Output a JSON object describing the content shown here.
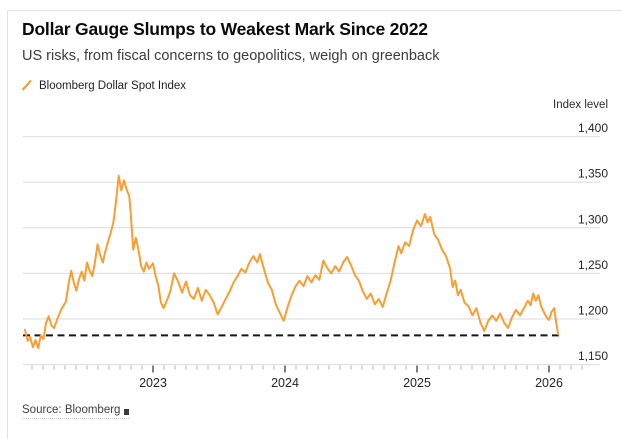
{
  "header": {
    "title": "Dollar Gauge Slumps to Weakest Mark Since 2022",
    "subtitle": "US risks, from fiscal concerns to geopolitics, weigh on greenback"
  },
  "legend": {
    "series_label": "Bloomberg Dollar Spot Index",
    "marker_color": "#e8a33c"
  },
  "footer": {
    "source": "Source: Bloomberg"
  },
  "chart_data": {
    "type": "line",
    "title": "Dollar Gauge Slumps to Weakest Mark Since 2022",
    "subtitle": "US risks, from fiscal concerns to geopolitics, weigh on greenback",
    "y_axis_title": "Index level",
    "xlabel": "",
    "ylabel": "Index level",
    "x_range": [
      2022.015,
      2026.33
    ],
    "ylim": [
      1140,
      1410
    ],
    "yticks": [
      1400,
      1350,
      1300,
      1250,
      1200,
      1150
    ],
    "ytick_labels": [
      "1,400",
      "1,350",
      "1,300",
      "1,250",
      "1,200",
      "1,150"
    ],
    "xticks": [
      2023,
      2024,
      2025,
      2026
    ],
    "xtick_labels": [
      "2023",
      "2024",
      "2025",
      "2026"
    ],
    "grid": "horizontal",
    "legend_position": "top-left",
    "line_color": "#f79e35",
    "grid_color": "#dbdbdb",
    "minor_tick_color": "#b5b5b5",
    "major_tick_color": "#4a4a4a",
    "tick_label_color": "#262626",
    "reference_line": {
      "value": 1182,
      "style": "dashed",
      "color": "#161616"
    },
    "series": [
      {
        "name": "Bloomberg Dollar Spot Index",
        "points": [
          [
            2022.03,
            1188
          ],
          [
            2022.05,
            1176
          ],
          [
            2022.07,
            1180
          ],
          [
            2022.09,
            1169
          ],
          [
            2022.11,
            1177
          ],
          [
            2022.13,
            1168
          ],
          [
            2022.15,
            1182
          ],
          [
            2022.17,
            1178
          ],
          [
            2022.19,
            1196
          ],
          [
            2022.21,
            1203
          ],
          [
            2022.23,
            1193
          ],
          [
            2022.25,
            1190
          ],
          [
            2022.28,
            1202
          ],
          [
            2022.31,
            1212
          ],
          [
            2022.34,
            1219
          ],
          [
            2022.36,
            1238
          ],
          [
            2022.38,
            1253
          ],
          [
            2022.4,
            1240
          ],
          [
            2022.42,
            1231
          ],
          [
            2022.44,
            1244
          ],
          [
            2022.46,
            1252
          ],
          [
            2022.48,
            1242
          ],
          [
            2022.5,
            1262
          ],
          [
            2022.52,
            1253
          ],
          [
            2022.54,
            1247
          ],
          [
            2022.56,
            1262
          ],
          [
            2022.58,
            1282
          ],
          [
            2022.6,
            1270
          ],
          [
            2022.62,
            1262
          ],
          [
            2022.64,
            1275
          ],
          [
            2022.66,
            1285
          ],
          [
            2022.68,
            1295
          ],
          [
            2022.7,
            1306
          ],
          [
            2022.72,
            1329
          ],
          [
            2022.74,
            1357
          ],
          [
            2022.76,
            1341
          ],
          [
            2022.78,
            1352
          ],
          [
            2022.8,
            1342
          ],
          [
            2022.82,
            1335
          ],
          [
            2022.83,
            1318
          ],
          [
            2022.85,
            1276
          ],
          [
            2022.87,
            1289
          ],
          [
            2022.89,
            1276
          ],
          [
            2022.91,
            1258
          ],
          [
            2022.93,
            1252
          ],
          [
            2022.95,
            1262
          ],
          [
            2022.97,
            1255
          ],
          [
            2023.0,
            1261
          ],
          [
            2023.02,
            1247
          ],
          [
            2023.04,
            1237
          ],
          [
            2023.06,
            1218
          ],
          [
            2023.08,
            1212
          ],
          [
            2023.11,
            1222
          ],
          [
            2023.13,
            1230
          ],
          [
            2023.16,
            1250
          ],
          [
            2023.19,
            1241
          ],
          [
            2023.22,
            1229
          ],
          [
            2023.25,
            1241
          ],
          [
            2023.28,
            1226
          ],
          [
            2023.31,
            1222
          ],
          [
            2023.34,
            1234
          ],
          [
            2023.37,
            1220
          ],
          [
            2023.4,
            1232
          ],
          [
            2023.43,
            1226
          ],
          [
            2023.46,
            1218
          ],
          [
            2023.49,
            1205
          ],
          [
            2023.52,
            1213
          ],
          [
            2023.55,
            1222
          ],
          [
            2023.58,
            1230
          ],
          [
            2023.61,
            1240
          ],
          [
            2023.64,
            1247
          ],
          [
            2023.67,
            1255
          ],
          [
            2023.7,
            1251
          ],
          [
            2023.73,
            1262
          ],
          [
            2023.76,
            1269
          ],
          [
            2023.79,
            1262
          ],
          [
            2023.81,
            1271
          ],
          [
            2023.84,
            1255
          ],
          [
            2023.87,
            1240
          ],
          [
            2023.9,
            1232
          ],
          [
            2023.93,
            1216
          ],
          [
            2023.96,
            1207
          ],
          [
            2023.99,
            1198
          ],
          [
            2024.02,
            1213
          ],
          [
            2024.05,
            1226
          ],
          [
            2024.08,
            1236
          ],
          [
            2024.11,
            1242
          ],
          [
            2024.14,
            1236
          ],
          [
            2024.17,
            1247
          ],
          [
            2024.2,
            1240
          ],
          [
            2024.23,
            1248
          ],
          [
            2024.26,
            1243
          ],
          [
            2024.29,
            1264
          ],
          [
            2024.32,
            1256
          ],
          [
            2024.35,
            1250
          ],
          [
            2024.38,
            1258
          ],
          [
            2024.41,
            1252
          ],
          [
            2024.44,
            1262
          ],
          [
            2024.47,
            1268
          ],
          [
            2024.5,
            1259
          ],
          [
            2024.53,
            1248
          ],
          [
            2024.56,
            1242
          ],
          [
            2024.59,
            1230
          ],
          [
            2024.62,
            1222
          ],
          [
            2024.65,
            1228
          ],
          [
            2024.68,
            1216
          ],
          [
            2024.71,
            1222
          ],
          [
            2024.74,
            1213
          ],
          [
            2024.77,
            1228
          ],
          [
            2024.8,
            1242
          ],
          [
            2024.83,
            1262
          ],
          [
            2024.86,
            1280
          ],
          [
            2024.88,
            1272
          ],
          [
            2024.91,
            1284
          ],
          [
            2024.94,
            1280
          ],
          [
            2024.97,
            1297
          ],
          [
            2025.0,
            1308
          ],
          [
            2025.03,
            1302
          ],
          [
            2025.06,
            1315
          ],
          [
            2025.08,
            1306
          ],
          [
            2025.1,
            1312
          ],
          [
            2025.13,
            1293
          ],
          [
            2025.16,
            1287
          ],
          [
            2025.19,
            1276
          ],
          [
            2025.22,
            1269
          ],
          [
            2025.25,
            1256
          ],
          [
            2025.27,
            1235
          ],
          [
            2025.29,
            1242
          ],
          [
            2025.31,
            1226
          ],
          [
            2025.33,
            1232
          ],
          [
            2025.36,
            1218
          ],
          [
            2025.39,
            1214
          ],
          [
            2025.42,
            1204
          ],
          [
            2025.45,
            1212
          ],
          [
            2025.48,
            1196
          ],
          [
            2025.51,
            1187
          ],
          [
            2025.54,
            1198
          ],
          [
            2025.57,
            1204
          ],
          [
            2025.6,
            1198
          ],
          [
            2025.63,
            1206
          ],
          [
            2025.66,
            1196
          ],
          [
            2025.69,
            1190
          ],
          [
            2025.72,
            1202
          ],
          [
            2025.75,
            1210
          ],
          [
            2025.78,
            1204
          ],
          [
            2025.81,
            1212
          ],
          [
            2025.84,
            1220
          ],
          [
            2025.86,
            1215
          ],
          [
            2025.88,
            1228
          ],
          [
            2025.9,
            1220
          ],
          [
            2025.92,
            1226
          ],
          [
            2025.94,
            1214
          ],
          [
            2025.96,
            1208
          ],
          [
            2025.98,
            1202
          ],
          [
            2026.0,
            1199
          ],
          [
            2026.02,
            1208
          ],
          [
            2026.04,
            1212
          ],
          [
            2026.05,
            1200
          ],
          [
            2026.07,
            1183
          ]
        ]
      }
    ]
  }
}
